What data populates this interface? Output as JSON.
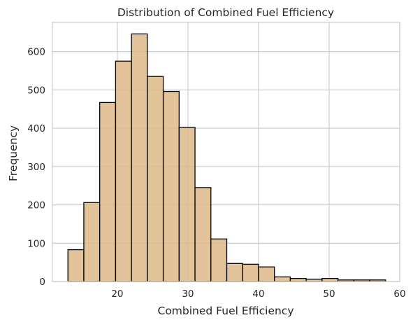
{
  "chart_data": {
    "type": "bar",
    "subtype": "histogram",
    "title": "Distribution of Combined Fuel Efficiency",
    "xlabel": "Combined Fuel Efficiency",
    "ylabel": "Frequency",
    "xlim": [
      10.8,
      60
    ],
    "ylim": [
      0,
      676
    ],
    "xticks": [
      20,
      30,
      40,
      50,
      60
    ],
    "yticks": [
      0,
      100,
      200,
      300,
      400,
      500,
      600
    ],
    "grid": true,
    "bar_color": "#deb887",
    "bar_edge_color": "#000000",
    "bins": [
      {
        "start": 13.0,
        "end": 15.25,
        "value": 83
      },
      {
        "start": 15.25,
        "end": 17.5,
        "value": 206
      },
      {
        "start": 17.5,
        "end": 19.75,
        "value": 467
      },
      {
        "start": 19.75,
        "end": 22.0,
        "value": 575
      },
      {
        "start": 22.0,
        "end": 24.25,
        "value": 646
      },
      {
        "start": 24.25,
        "end": 26.5,
        "value": 535
      },
      {
        "start": 26.5,
        "end": 28.75,
        "value": 496
      },
      {
        "start": 28.75,
        "end": 31.0,
        "value": 402
      },
      {
        "start": 31.0,
        "end": 33.25,
        "value": 245
      },
      {
        "start": 33.25,
        "end": 35.5,
        "value": 111
      },
      {
        "start": 35.5,
        "end": 37.75,
        "value": 47
      },
      {
        "start": 37.75,
        "end": 40.0,
        "value": 45
      },
      {
        "start": 40.0,
        "end": 42.25,
        "value": 38
      },
      {
        "start": 42.25,
        "end": 44.5,
        "value": 12
      },
      {
        "start": 44.5,
        "end": 46.75,
        "value": 8
      },
      {
        "start": 46.75,
        "end": 49.0,
        "value": 6
      },
      {
        "start": 49.0,
        "end": 51.25,
        "value": 8
      },
      {
        "start": 51.25,
        "end": 53.5,
        "value": 4
      },
      {
        "start": 53.5,
        "end": 55.75,
        "value": 4
      },
      {
        "start": 55.75,
        "end": 58.0,
        "value": 4
      }
    ]
  }
}
